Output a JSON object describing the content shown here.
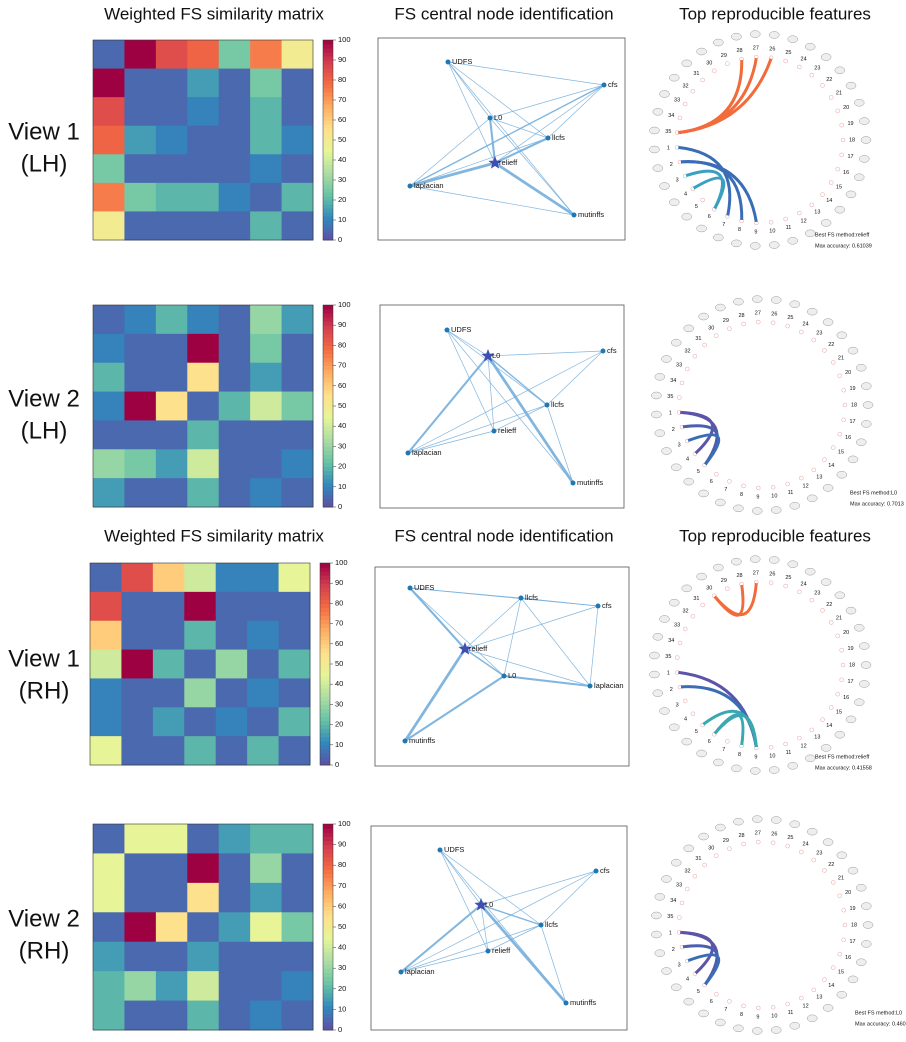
{
  "row_labels": [
    [
      "View 1",
      "(LH)"
    ],
    [
      "View 2",
      "(LH)"
    ],
    [
      "View 1",
      "(RH)"
    ],
    [
      "View 2",
      "(RH)"
    ]
  ],
  "chart_data": [
    {
      "type": "heatmap",
      "title": "Weighted FS similarity matrix",
      "zlim": [
        0,
        100
      ],
      "zticks": [
        0,
        10,
        20,
        30,
        40,
        50,
        60,
        70,
        80,
        90,
        100
      ],
      "colormap": [
        "#5e4fa2",
        "#3288bd",
        "#66c2a5",
        "#abdda4",
        "#e6f598",
        "#fee08b",
        "#fdae61",
        "#f46d43",
        "#d53e4f",
        "#9e0142"
      ],
      "values": [
        [
          5,
          100,
          85,
          80,
          25,
          75,
          50
        ],
        [
          100,
          5,
          5,
          15,
          5,
          25,
          5
        ],
        [
          85,
          5,
          5,
          10,
          5,
          20,
          5
        ],
        [
          80,
          15,
          10,
          5,
          5,
          20,
          10
        ],
        [
          25,
          5,
          5,
          5,
          5,
          10,
          5
        ],
        [
          75,
          25,
          20,
          20,
          10,
          5,
          20
        ],
        [
          50,
          5,
          5,
          5,
          5,
          20,
          5
        ]
      ]
    },
    {
      "type": "network",
      "title": "FS central node identification",
      "nodes": [
        "UDFS",
        "cfs",
        "L0",
        "llcfs",
        "relieff",
        "laplacian",
        "mutinffs"
      ],
      "central": 4,
      "edges": [
        [
          4,
          5,
          4
        ],
        [
          4,
          6,
          4
        ],
        [
          4,
          2,
          3
        ],
        [
          4,
          3,
          3
        ],
        [
          4,
          1,
          1
        ],
        [
          4,
          0,
          1
        ],
        [
          0,
          2,
          1
        ],
        [
          0,
          3,
          1
        ],
        [
          0,
          6,
          1
        ],
        [
          1,
          2,
          1
        ],
        [
          1,
          5,
          2
        ],
        [
          1,
          3,
          1
        ],
        [
          2,
          5,
          1
        ],
        [
          2,
          6,
          1
        ],
        [
          3,
          5,
          1
        ],
        [
          5,
          6,
          1
        ],
        [
          0,
          1,
          1
        ],
        [
          2,
          3,
          1
        ]
      ]
    },
    {
      "type": "chord",
      "title": "Top reproducible features",
      "regions": [
        1,
        2,
        3,
        4,
        5,
        6,
        7,
        8,
        9,
        10,
        11,
        12,
        13,
        14,
        15,
        16,
        17,
        18,
        19,
        20,
        21,
        22,
        23,
        24,
        25,
        26,
        27,
        28,
        29,
        30,
        31,
        32,
        33,
        34,
        35
      ],
      "links": [
        {
          "source": 35,
          "target": 26,
          "color": "#f26b3a"
        },
        {
          "source": 35,
          "target": 27,
          "color": "#f26b3a"
        },
        {
          "source": 35,
          "target": 28,
          "color": "#f26b3a"
        },
        {
          "source": 2,
          "target": 9,
          "color": "#3a6db5"
        },
        {
          "source": 2,
          "target": 8,
          "color": "#3a6db5"
        },
        {
          "source": 1,
          "target": 7,
          "color": "#3a6db5"
        },
        {
          "source": 3,
          "target": 6,
          "color": "#3a9fc0"
        },
        {
          "source": 4,
          "target": 6,
          "color": "#3a9fc0"
        }
      ],
      "annotation": [
        "Best FS method:relieff",
        "Max accuracy: 0.61039"
      ]
    },
    {
      "type": "heatmap",
      "zlim": [
        0,
        100
      ],
      "zticks": [
        0,
        10,
        20,
        30,
        40,
        50,
        60,
        70,
        80,
        90,
        100
      ],
      "colormap": [
        "#5e4fa2",
        "#3288bd",
        "#66c2a5",
        "#abdda4",
        "#e6f598",
        "#fee08b",
        "#fdae61",
        "#f46d43",
        "#d53e4f",
        "#9e0142"
      ],
      "values": [
        [
          5,
          10,
          20,
          10,
          5,
          30,
          15
        ],
        [
          10,
          5,
          5,
          100,
          5,
          25,
          5
        ],
        [
          20,
          5,
          5,
          55,
          5,
          15,
          5
        ],
        [
          10,
          100,
          55,
          5,
          20,
          40,
          25
        ],
        [
          5,
          5,
          5,
          20,
          5,
          5,
          5
        ],
        [
          30,
          25,
          15,
          40,
          5,
          5,
          10
        ],
        [
          15,
          5,
          5,
          20,
          5,
          10,
          5
        ]
      ]
    },
    {
      "type": "network",
      "nodes": [
        "UDFS",
        "cfs",
        "L0",
        "llcfs",
        "relieff",
        "laplacian",
        "mutinffs"
      ],
      "central": 2,
      "edges": [
        [
          2,
          5,
          3
        ],
        [
          2,
          6,
          4
        ],
        [
          2,
          3,
          2
        ],
        [
          2,
          1,
          1
        ],
        [
          2,
          0,
          1
        ],
        [
          2,
          4,
          1
        ],
        [
          0,
          3,
          1
        ],
        [
          0,
          6,
          1
        ],
        [
          1,
          3,
          1
        ],
        [
          1,
          5,
          1
        ],
        [
          4,
          5,
          1
        ],
        [
          4,
          3,
          1
        ],
        [
          5,
          3,
          1
        ],
        [
          6,
          3,
          1
        ],
        [
          0,
          4,
          1
        ]
      ]
    },
    {
      "type": "chord",
      "regions": [
        1,
        2,
        3,
        4,
        5,
        6,
        7,
        8,
        9,
        10,
        11,
        12,
        13,
        14,
        15,
        16,
        17,
        18,
        19,
        20,
        21,
        22,
        23,
        24,
        25,
        26,
        27,
        28,
        29,
        30,
        31,
        32,
        33,
        34,
        35
      ],
      "links": [
        {
          "source": 1,
          "target": 5,
          "color": "#5b54a8"
        },
        {
          "source": 1,
          "target": 4,
          "color": "#5b54a8"
        },
        {
          "source": 2,
          "target": 5,
          "color": "#4a5fb0"
        },
        {
          "source": 3,
          "target": 5,
          "color": "#3a6db5"
        }
      ],
      "annotation": [
        "Best FS method:L0",
        "Max accuracy: 0.7013"
      ]
    },
    {
      "type": "heatmap",
      "title": "Weighted FS similarity matrix",
      "zlim": [
        0,
        100
      ],
      "zticks": [
        0,
        10,
        20,
        30,
        40,
        50,
        60,
        70,
        80,
        90,
        100
      ],
      "colormap": [
        "#5e4fa2",
        "#3288bd",
        "#66c2a5",
        "#abdda4",
        "#e6f598",
        "#fee08b",
        "#fdae61",
        "#f46d43",
        "#d53e4f",
        "#9e0142"
      ],
      "values": [
        [
          5,
          85,
          60,
          40,
          10,
          10,
          45
        ],
        [
          85,
          5,
          5,
          100,
          5,
          5,
          5
        ],
        [
          60,
          5,
          5,
          20,
          5,
          10,
          5
        ],
        [
          40,
          100,
          20,
          5,
          30,
          5,
          20
        ],
        [
          10,
          5,
          5,
          30,
          5,
          10,
          5
        ],
        [
          10,
          5,
          15,
          5,
          10,
          5,
          20
        ],
        [
          45,
          5,
          5,
          20,
          5,
          20,
          5
        ]
      ]
    },
    {
      "type": "network",
      "title": "FS central node identification",
      "nodes": [
        "UDFS",
        "cfs",
        "L0",
        "llcfs",
        "relieff",
        "laplacian",
        "mutinffs"
      ],
      "central": 4,
      "edges": [
        [
          4,
          6,
          4
        ],
        [
          4,
          0,
          3
        ],
        [
          4,
          2,
          2
        ],
        [
          4,
          3,
          1
        ],
        [
          4,
          5,
          1
        ],
        [
          4,
          1,
          1
        ],
        [
          2,
          6,
          3
        ],
        [
          2,
          5,
          3
        ],
        [
          2,
          3,
          1
        ],
        [
          0,
          3,
          1
        ],
        [
          0,
          1,
          1
        ],
        [
          3,
          1,
          1
        ],
        [
          1,
          5,
          1
        ],
        [
          3,
          5,
          1
        ],
        [
          0,
          2,
          1
        ]
      ]
    },
    {
      "type": "chord",
      "title": "Top reproducible features",
      "regions": [
        1,
        2,
        3,
        4,
        5,
        6,
        7,
        8,
        9,
        10,
        11,
        12,
        13,
        14,
        15,
        16,
        17,
        18,
        19,
        20,
        21,
        22,
        23,
        24,
        25,
        26,
        27,
        28,
        29,
        30,
        31,
        32,
        33,
        34,
        35
      ],
      "links": [
        {
          "source": 30,
          "target": 27,
          "color": "#f26b3a"
        },
        {
          "source": 30,
          "target": 28,
          "color": "#f26b3a"
        },
        {
          "source": 1,
          "target": 9,
          "color": "#5b54a8"
        },
        {
          "source": 2,
          "target": 9,
          "color": "#3a6db5"
        },
        {
          "source": 5,
          "target": 9,
          "color": "#3aa8b0"
        },
        {
          "source": 6,
          "target": 8,
          "color": "#3aa8b0"
        },
        {
          "source": 6,
          "target": 9,
          "color": "#3aa8b0"
        }
      ],
      "annotation": [
        "Best FS method:relieff",
        "Max accuracy: 0.41558"
      ]
    },
    {
      "type": "heatmap",
      "zlim": [
        0,
        100
      ],
      "zticks": [
        0,
        10,
        20,
        30,
        40,
        50,
        60,
        70,
        80,
        90,
        100
      ],
      "colormap": [
        "#5e4fa2",
        "#3288bd",
        "#66c2a5",
        "#abdda4",
        "#e6f598",
        "#fee08b",
        "#fdae61",
        "#f46d43",
        "#d53e4f",
        "#9e0142"
      ],
      "values": [
        [
          5,
          45,
          45,
          5,
          15,
          20,
          20
        ],
        [
          45,
          5,
          5,
          100,
          5,
          30,
          5
        ],
        [
          45,
          5,
          5,
          55,
          5,
          15,
          5
        ],
        [
          5,
          100,
          55,
          5,
          15,
          45,
          25
        ],
        [
          15,
          5,
          5,
          15,
          5,
          5,
          5
        ],
        [
          20,
          30,
          15,
          40,
          5,
          5,
          10
        ],
        [
          20,
          5,
          5,
          20,
          5,
          10,
          5
        ]
      ]
    },
    {
      "type": "network",
      "nodes": [
        "UDFS",
        "cfs",
        "L0",
        "llcfs",
        "relieff",
        "laplacian",
        "mutinffs"
      ],
      "central": 2,
      "edges": [
        [
          2,
          5,
          3
        ],
        [
          2,
          6,
          4
        ],
        [
          2,
          3,
          2
        ],
        [
          2,
          1,
          1
        ],
        [
          2,
          0,
          1
        ],
        [
          2,
          4,
          1
        ],
        [
          0,
          3,
          1
        ],
        [
          0,
          6,
          1
        ],
        [
          1,
          3,
          1
        ],
        [
          1,
          5,
          1
        ],
        [
          4,
          5,
          1
        ],
        [
          4,
          3,
          1
        ],
        [
          5,
          3,
          1
        ],
        [
          6,
          3,
          1
        ],
        [
          0,
          4,
          1
        ]
      ]
    },
    {
      "type": "chord",
      "regions": [
        1,
        2,
        3,
        4,
        5,
        6,
        7,
        8,
        9,
        10,
        11,
        12,
        13,
        14,
        15,
        16,
        17,
        18,
        19,
        20,
        21,
        22,
        23,
        24,
        25,
        26,
        27,
        28,
        29,
        30,
        31,
        32,
        33,
        34,
        35
      ],
      "links": [
        {
          "source": 1,
          "target": 5,
          "color": "#5b54a8"
        },
        {
          "source": 1,
          "target": 4,
          "color": "#5b54a8"
        },
        {
          "source": 2,
          "target": 5,
          "color": "#4a5fb0"
        },
        {
          "source": 3,
          "target": 5,
          "color": "#3a6db5"
        }
      ],
      "annotation": [
        "Best FS method:L0",
        "Max accuracy: 0.46052"
      ]
    }
  ]
}
